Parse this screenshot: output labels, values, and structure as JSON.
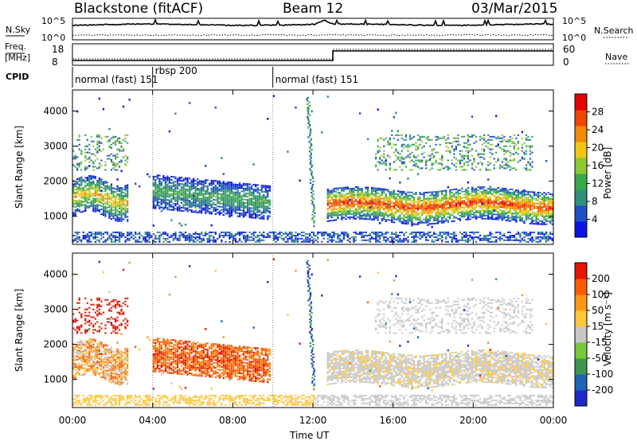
{
  "header": {
    "station": "Blackstone (fitACF)",
    "beam": "Beam 12",
    "date": "03/Mar/2015"
  },
  "noise_panel": {
    "left_label": "N.Sky",
    "right_label": "N.Search",
    "left_ticks": [
      "10^5",
      "10^0"
    ],
    "right_ticks": [
      "10^5",
      "10^0"
    ]
  },
  "freq_panel": {
    "label_line1": "Freq.",
    "label_line2": "[MHz]",
    "left_ticks": [
      "18",
      "8"
    ],
    "right_label": "Nave",
    "right_ticks": [
      "60",
      "0"
    ]
  },
  "cpid_panel": {
    "label": "CPID",
    "segments": [
      {
        "name": "normal (fast) 151",
        "start_h": 0.0,
        "end_h": 4.0
      },
      {
        "name": "rbsp 200",
        "start_h": 4.0,
        "end_h": 10.0
      },
      {
        "name": "normal (fast) 151",
        "start_h": 10.0,
        "end_h": 24.0
      }
    ]
  },
  "colors": {
    "power_scale": [
      "#0a14e6",
      "#1e50c8",
      "#2f8f7a",
      "#3aa84a",
      "#8cc832",
      "#f0c814",
      "#f08c0a",
      "#f04600",
      "#e60000"
    ],
    "velocity_scale": [
      "#1e28c8",
      "#1e64b4",
      "#3c9650",
      "#78c83c",
      "#c8c8c8",
      "#ffc83c",
      "#ff9614",
      "#ff5a00",
      "#e61400"
    ]
  },
  "chart_data": [
    {
      "type": "heatmap",
      "name": "power",
      "xlabel": "Time UT",
      "ylabel": "Slant Range [km]",
      "xlim": [
        0,
        24
      ],
      "ylim": [
        200,
        4600
      ],
      "x_ticks": [
        "00:00",
        "04:00",
        "08:00",
        "12:00",
        "16:00",
        "20:00",
        "00:00"
      ],
      "y_ticks": [
        1000,
        2000,
        3000,
        4000
      ],
      "colorbar": {
        "label": "Power [dB]",
        "ticks": [
          4,
          8,
          12,
          16,
          20,
          24,
          28
        ],
        "range": [
          0,
          32
        ]
      },
      "features": [
        {
          "desc": "scatter band",
          "t_start": 0.0,
          "t_end": 2.8,
          "range_center_km": 1500,
          "peak_db": 22
        },
        {
          "desc": "scatter band",
          "t_start": 4.0,
          "t_end": 9.8,
          "range_center_km": 1450,
          "peak_db": 12
        },
        {
          "desc": "scatter band",
          "t_start": 12.6,
          "t_end": 23.9,
          "range_center_km": 1300,
          "peak_db": 30
        }
      ]
    },
    {
      "type": "heatmap",
      "name": "velocity",
      "xlabel": "Time UT",
      "ylabel": "Slant Range [km]",
      "xlim": [
        0,
        24
      ],
      "ylim": [
        200,
        4600
      ],
      "x_ticks": [
        "00:00",
        "04:00",
        "08:00",
        "12:00",
        "16:00",
        "20:00",
        "00:00"
      ],
      "y_ticks": [
        1000,
        2000,
        3000,
        4000
      ],
      "colorbar": {
        "label": "Velocity [m s⁻¹]",
        "ticks": [
          "200",
          "100",
          "50",
          "15",
          "-15",
          "-50",
          "-100",
          "-200"
        ]
      }
    }
  ]
}
